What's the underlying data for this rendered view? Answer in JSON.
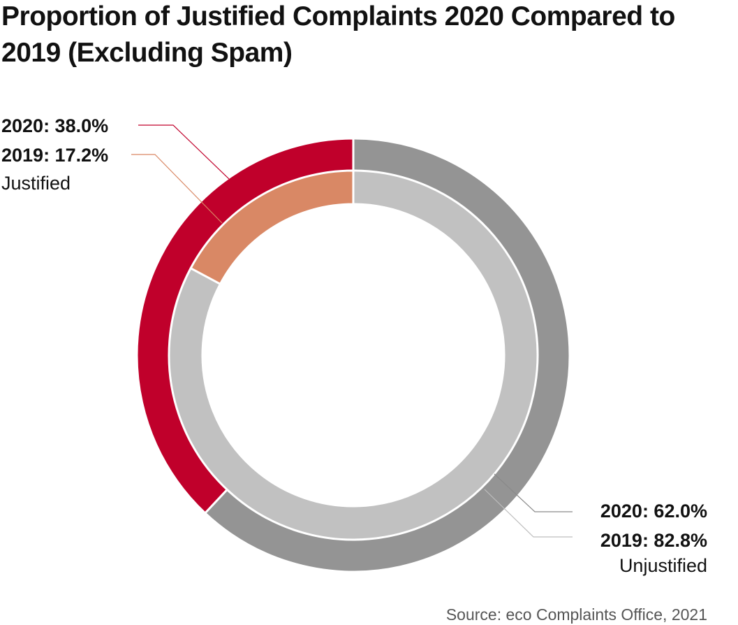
{
  "chart_data": {
    "type": "pie",
    "variant": "nested-donut",
    "title": "Proportion of Justified Complaints 2020 Compared to 2019 (Excluding Spam)",
    "series": [
      {
        "name": "2020",
        "ring": "outer",
        "categories": [
          "Justified",
          "Unjustified"
        ],
        "values": [
          38.0,
          62.0
        ],
        "colors": [
          "#c0002b",
          "#949494"
        ]
      },
      {
        "name": "2019",
        "ring": "inner",
        "categories": [
          "Justified",
          "Unjustified"
        ],
        "values": [
          17.2,
          82.8
        ],
        "colors": [
          "#d98865",
          "#c1c1c1"
        ]
      }
    ],
    "labels": {
      "justified": {
        "line_2020": "2020: 38.0%",
        "line_2019": "2019: 17.2%",
        "category": "Justified"
      },
      "unjustified": {
        "line_2020": "2020: 62.0%",
        "line_2019": "2019: 82.8%",
        "category": "Unjustified"
      }
    },
    "leader_colors": {
      "justified_2020": "#c0002b",
      "justified_2019": "#d98865",
      "unjustified_2020": "#8a8a8a",
      "unjustified_2019": "#bdbdbd"
    },
    "source": "Source: eco Complaints Office, 2021"
  }
}
